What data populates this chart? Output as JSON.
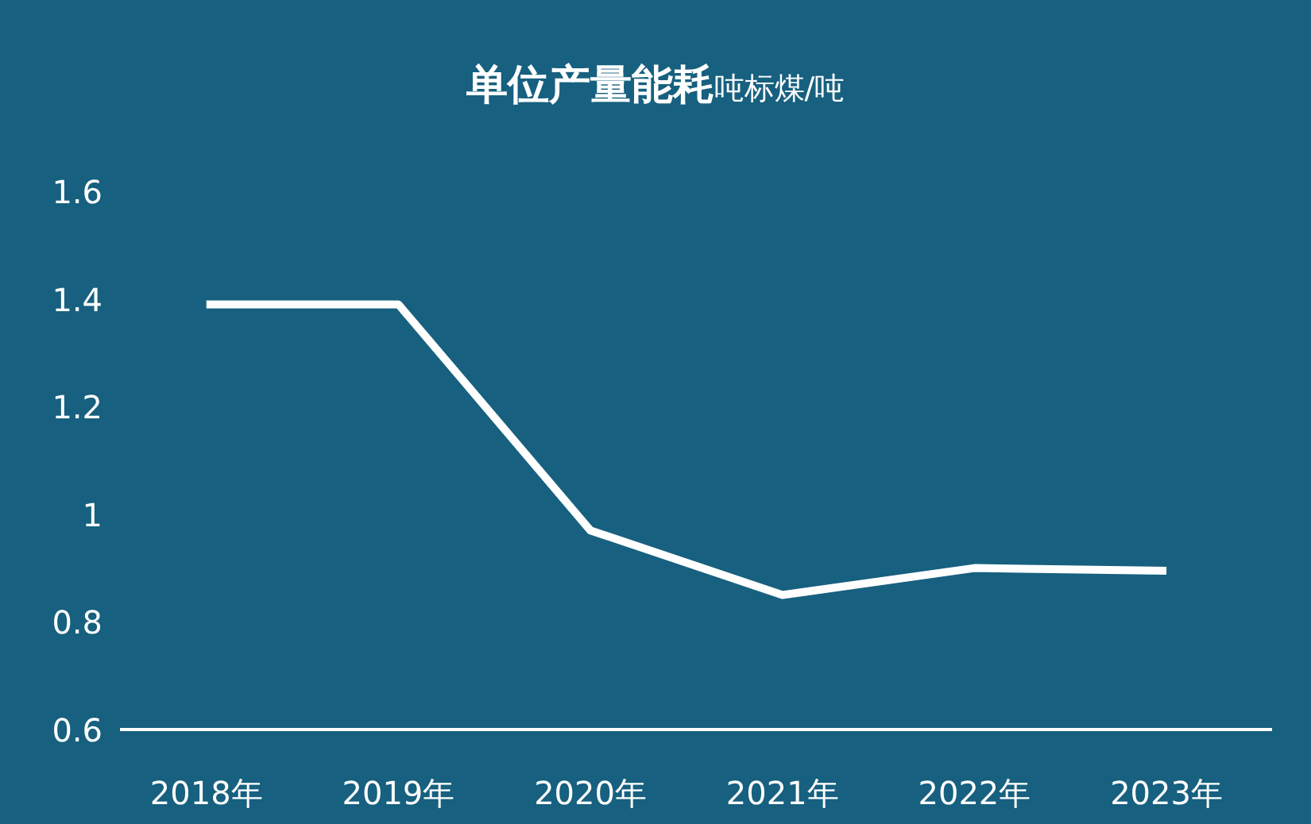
{
  "chart_data": {
    "type": "line",
    "title": "单位产量能耗",
    "subtitle": "吨标煤/吨",
    "categories": [
      "2018年",
      "2019年",
      "2020年",
      "2021年",
      "2022年",
      "2023年"
    ],
    "series": [
      {
        "color": "#ffffff",
        "values": [
          1.39,
          1.39,
          0.97,
          0.85,
          0.9,
          0.895
        ]
      }
    ],
    "ylim": [
      0.6,
      1.6
    ],
    "yticks": [
      0.6,
      0.8,
      1,
      1.2,
      1.4,
      1.6
    ],
    "grid": false,
    "marker": "none",
    "line_style": "solid"
  }
}
